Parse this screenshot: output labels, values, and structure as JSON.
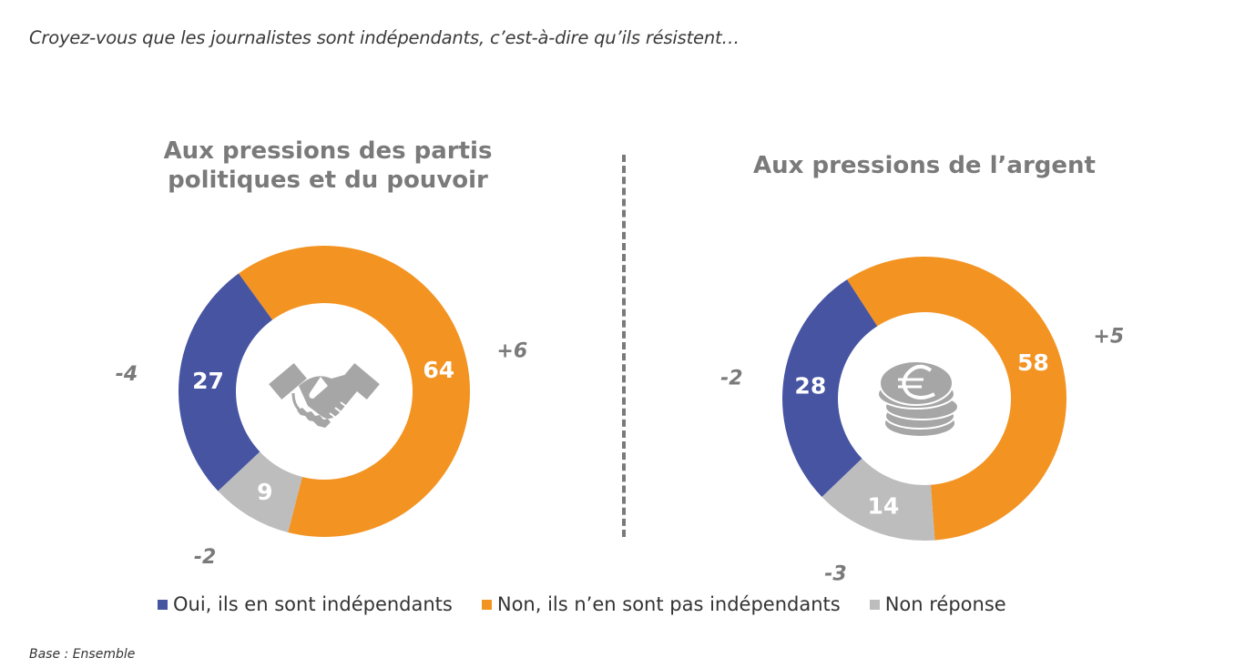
{
  "question": "Croyez-vous que les journalistes sont indépendants, c’est-à-dire qu’ils résistent…",
  "base_note": "Base : Ensemble",
  "colors": {
    "oui": "#4654A2",
    "non": "#F39322",
    "nr": "#BDBDBD",
    "text_grey": "#7a7a7a"
  },
  "legend": [
    {
      "key": "oui",
      "label": "Oui, ils en sont indépendants"
    },
    {
      "key": "non",
      "label": "Non, ils n’en sont pas indépendants"
    },
    {
      "key": "nr",
      "label": "Non réponse"
    }
  ],
  "chart_data": [
    {
      "type": "pie",
      "variant": "donut",
      "title": "Aux pressions des partis politiques et du pouvoir",
      "center_icon": "handshake-icon",
      "slices": [
        {
          "key": "non",
          "label": "Non, ils n’en sont pas indépendants",
          "value": 64,
          "change": "+6"
        },
        {
          "key": "nr",
          "label": "Non réponse",
          "value": 9,
          "change": "-2"
        },
        {
          "key": "oui",
          "label": "Oui, ils en sont indépendants",
          "value": 27,
          "change": "-4"
        }
      ]
    },
    {
      "type": "pie",
      "variant": "donut",
      "title": "Aux pressions de l’argent",
      "center_icon": "euro-coins-icon",
      "slices": [
        {
          "key": "non",
          "label": "Non, ils n’en sont pas indépendants",
          "value": 58,
          "change": "+5"
        },
        {
          "key": "nr",
          "label": "Non réponse",
          "value": 14,
          "change": "-3"
        },
        {
          "key": "oui",
          "label": "Oui, ils en sont indépendants",
          "value": 28,
          "change": "-2"
        }
      ]
    }
  ]
}
